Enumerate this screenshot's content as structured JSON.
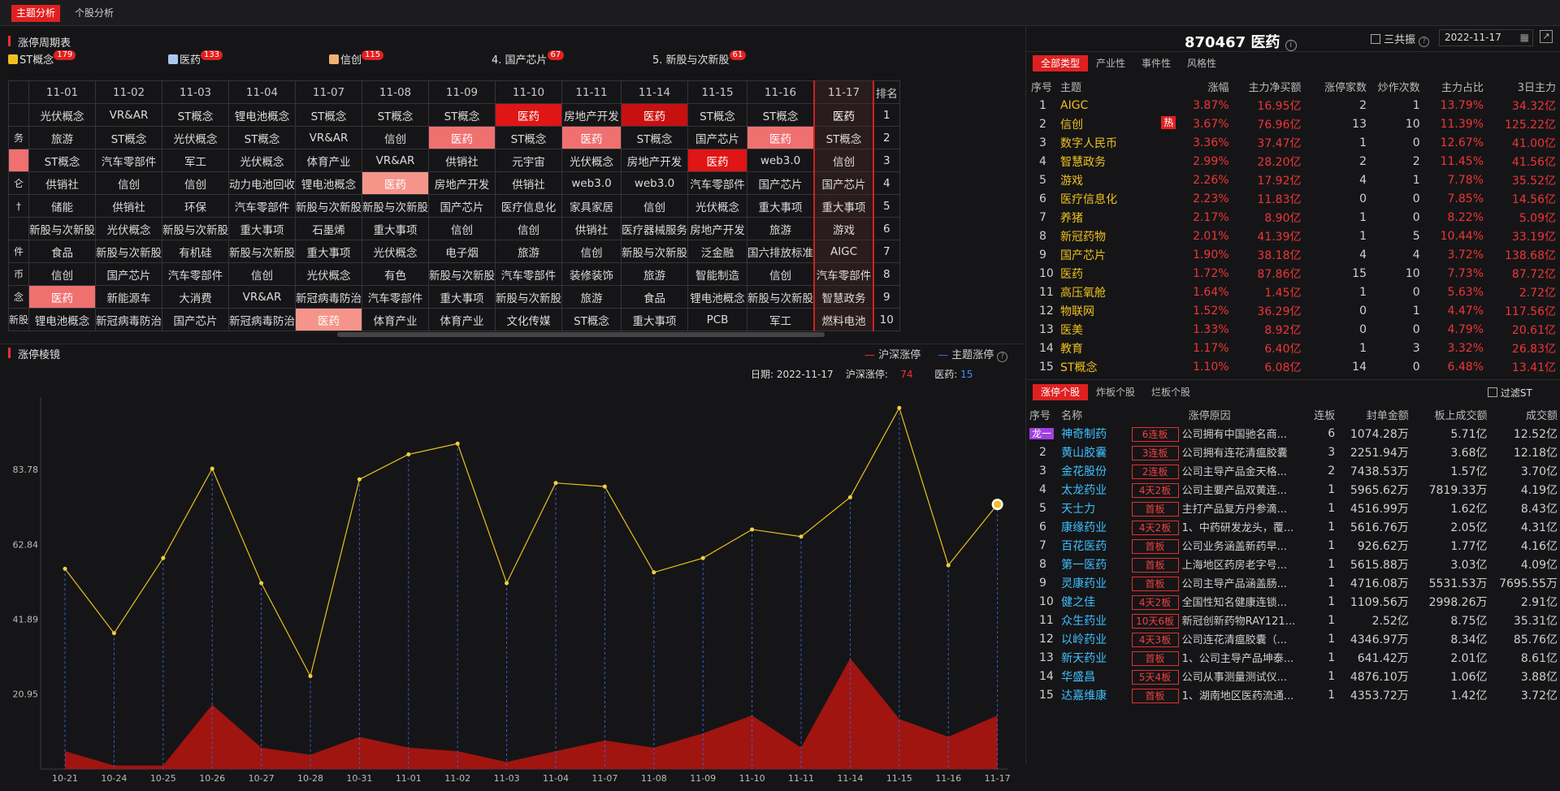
{
  "tabs": {
    "theme": "主题分析",
    "stock": "个股分析"
  },
  "cycle": {
    "title": "涨停周期表",
    "legend": [
      {
        "label": "ST概念",
        "count": "179",
        "icon": "gold-cube-icon"
      },
      {
        "label": "医药",
        "count": "133",
        "icon": "blue-cube-icon"
      },
      {
        "label": "信创",
        "count": "115",
        "icon": "orange-cube-icon"
      },
      {
        "label": "4. 国产芯片",
        "count": "67",
        "icon": ""
      },
      {
        "label": "5. 新股与次新股",
        "count": "61",
        "icon": ""
      }
    ],
    "dates": [
      "11-01",
      "11-02",
      "11-03",
      "11-04",
      "11-07",
      "11-08",
      "11-09",
      "11-10",
      "11-11",
      "11-14",
      "11-15",
      "11-16",
      "11-17"
    ],
    "rank_label": "排名",
    "prev_col": [
      "",
      "务",
      "",
      "仑",
      "†",
      "",
      "件",
      "币",
      "念",
      "新股"
    ],
    "rows": [
      [
        "光伏概念",
        "VR&AR",
        "ST概念",
        "锂电池概念",
        "ST概念",
        "ST概念",
        "ST概念",
        "医药",
        "房地产开发",
        "医药",
        "ST概念",
        "ST概念",
        "医药"
      ],
      [
        "旅游",
        "ST概念",
        "光伏概念",
        "ST概念",
        "VR&AR",
        "信创",
        "医药",
        "ST概念",
        "医药",
        "ST概念",
        "国产芯片",
        "医药",
        "ST概念"
      ],
      [
        "ST概念",
        "汽车零部件",
        "军工",
        "光伏概念",
        "体育产业",
        "VR&AR",
        "供销社",
        "元宇宙",
        "光伏概念",
        "房地产开发",
        "医药",
        "web3.0",
        "信创"
      ],
      [
        "供销社",
        "信创",
        "信创",
        "动力电池回收",
        "锂电池概念",
        "医药",
        "房地产开发",
        "供销社",
        "web3.0",
        "web3.0",
        "汽车零部件",
        "国产芯片",
        "国产芯片"
      ],
      [
        "储能",
        "供销社",
        "环保",
        "汽车零部件",
        "新股与次新股",
        "新股与次新股",
        "国产芯片",
        "医疗信息化",
        "家具家居",
        "信创",
        "光伏概念",
        "重大事项",
        "重大事项"
      ],
      [
        "新股与次新股",
        "光伏概念",
        "新股与次新股",
        "重大事项",
        "石墨烯",
        "重大事项",
        "信创",
        "信创",
        "供销社",
        "医疗器械服务",
        "房地产开发",
        "旅游",
        "游戏"
      ],
      [
        "食品",
        "新股与次新股",
        "有机硅",
        "新股与次新股",
        "重大事项",
        "光伏概念",
        "电子烟",
        "旅游",
        "信创",
        "新股与次新股",
        "泛金融",
        "国六排放标准",
        "AIGC"
      ],
      [
        "信创",
        "国产芯片",
        "汽车零部件",
        "信创",
        "光伏概念",
        "有色",
        "新股与次新股",
        "汽车零部件",
        "装修装饰",
        "旅游",
        "智能制造",
        "信创",
        "汽车零部件"
      ],
      [
        "医药",
        "新能源车",
        "大消费",
        "VR&AR",
        "新冠病毒防治",
        "汽车零部件",
        "重大事项",
        "新股与次新股",
        "旅游",
        "食品",
        "锂电池概念",
        "新股与次新股",
        "智慧政务"
      ],
      [
        "锂电池概念",
        "新冠病毒防治",
        "国产芯片",
        "新冠病毒防治",
        "医药",
        "体育产业",
        "体育产业",
        "文化传媒",
        "ST概念",
        "重大事项",
        "PCB",
        "军工",
        "燃料电池"
      ]
    ]
  },
  "mirror": {
    "title": "涨停棱镜",
    "legend_hs": "沪深涨停",
    "legend_theme": "主题涨停",
    "info_date_label": "日期:",
    "info_date": "2022-11-17",
    "info_hs_label": "沪深涨停:",
    "info_hs": "74",
    "info_theme_label": "医药:",
    "info_theme": "15"
  },
  "chart_data": {
    "type": "line",
    "x": [
      "10-21",
      "10-24",
      "10-25",
      "10-26",
      "10-27",
      "10-28",
      "10-31",
      "11-01",
      "11-02",
      "11-03",
      "11-04",
      "11-07",
      "11-08",
      "11-09",
      "11-10",
      "11-11",
      "11-14",
      "11-15",
      "11-16",
      "11-17"
    ],
    "y_ticks": [
      "20.95",
      "41.89",
      "62.84",
      "83.78"
    ],
    "ylim": [
      0,
      104
    ],
    "series": [
      {
        "name": "沪深涨停",
        "type": "line",
        "color": "#e8c020",
        "values": [
          56,
          38,
          59,
          84,
          52,
          26,
          81,
          88,
          91,
          52,
          80,
          79,
          55,
          59,
          67,
          65,
          76,
          101,
          57,
          74
        ]
      },
      {
        "name": "主题涨停",
        "type": "area",
        "color": "#a01510",
        "values": [
          5,
          1,
          1,
          18,
          6,
          4,
          9,
          6,
          5,
          2,
          5,
          8,
          6,
          10,
          15,
          6,
          31,
          14,
          9,
          15
        ]
      }
    ]
  },
  "stock": {
    "code": "870467",
    "name": "医药",
    "sanggong": "三共振",
    "date": "2022-11-17"
  },
  "theme_tabs": [
    "全部类型",
    "产业性",
    "事件性",
    "风格性"
  ],
  "theme_table": {
    "headers": [
      "序号",
      "主题",
      "涨幅",
      "主力净买额",
      "涨停家数",
      "炒作次数",
      "主力占比",
      "3日主力"
    ],
    "rows": [
      [
        "1",
        "AIGC",
        "",
        "3.87%",
        "16.95亿",
        "2",
        "1",
        "13.79%",
        "34.32亿"
      ],
      [
        "2",
        "信创",
        "热",
        "3.67%",
        "76.96亿",
        "13",
        "10",
        "11.39%",
        "125.22亿"
      ],
      [
        "3",
        "数字人民币",
        "",
        "3.36%",
        "37.47亿",
        "1",
        "0",
        "12.67%",
        "41.00亿"
      ],
      [
        "4",
        "智慧政务",
        "",
        "2.99%",
        "28.20亿",
        "2",
        "2",
        "11.45%",
        "41.56亿"
      ],
      [
        "5",
        "游戏",
        "",
        "2.26%",
        "17.92亿",
        "4",
        "1",
        "7.78%",
        "35.52亿"
      ],
      [
        "6",
        "医疗信息化",
        "",
        "2.23%",
        "11.83亿",
        "0",
        "0",
        "7.85%",
        "14.56亿"
      ],
      [
        "7",
        "养猪",
        "",
        "2.17%",
        "8.90亿",
        "1",
        "0",
        "8.22%",
        "5.09亿"
      ],
      [
        "8",
        "新冠药物",
        "",
        "2.01%",
        "41.39亿",
        "1",
        "5",
        "10.44%",
        "33.19亿"
      ],
      [
        "9",
        "国产芯片",
        "",
        "1.90%",
        "38.18亿",
        "4",
        "4",
        "3.72%",
        "138.68亿"
      ],
      [
        "10",
        "医药",
        "",
        "1.72%",
        "87.86亿",
        "15",
        "10",
        "7.73%",
        "87.72亿"
      ],
      [
        "11",
        "高压氧舱",
        "",
        "1.64%",
        "1.45亿",
        "1",
        "0",
        "5.63%",
        "2.72亿"
      ],
      [
        "12",
        "物联网",
        "",
        "1.52%",
        "36.29亿",
        "0",
        "1",
        "4.47%",
        "117.56亿"
      ],
      [
        "13",
        "医美",
        "",
        "1.33%",
        "8.92亿",
        "0",
        "0",
        "4.79%",
        "20.61亿"
      ],
      [
        "14",
        "教育",
        "",
        "1.17%",
        "6.40亿",
        "1",
        "3",
        "3.32%",
        "26.83亿"
      ],
      [
        "15",
        "ST概念",
        "",
        "1.10%",
        "6.08亿",
        "14",
        "0",
        "6.48%",
        "13.41亿"
      ]
    ]
  },
  "stock_tabs": [
    "涨停个股",
    "炸板个股",
    "烂板个股"
  ],
  "filter_st": "过滤ST",
  "stock_table": {
    "headers": [
      "序号",
      "名称",
      "涨停原因",
      "连板",
      "封单金额",
      "板上成交额",
      "成交额"
    ],
    "rows": [
      [
        "龙一",
        "神奇制药",
        "6连板",
        "公司拥有中国驰名商...",
        "6",
        "1074.28万",
        "5.71亿",
        "12.52亿"
      ],
      [
        "2",
        "黄山胶囊",
        "3连板",
        "公司拥有连花清瘟胶囊",
        "3",
        "2251.94万",
        "3.68亿",
        "12.18亿"
      ],
      [
        "3",
        "金花股份",
        "2连板",
        "公司主导产品金天格...",
        "2",
        "7438.53万",
        "1.57亿",
        "3.70亿"
      ],
      [
        "4",
        "太龙药业",
        "4天2板",
        "公司主要产品双黄连...",
        "1",
        "5965.62万",
        "7819.33万",
        "4.19亿"
      ],
      [
        "5",
        "天士力",
        "首板",
        "主打产品复方丹参滴...",
        "1",
        "4516.99万",
        "1.62亿",
        "8.43亿"
      ],
      [
        "6",
        "康缘药业",
        "4天2板",
        "1、中药研发龙头，覆...",
        "1",
        "5616.76万",
        "2.05亿",
        "4.31亿"
      ],
      [
        "7",
        "百花医药",
        "首板",
        "公司业务涵盖新药早...",
        "1",
        "926.62万",
        "1.77亿",
        "4.16亿"
      ],
      [
        "8",
        "第一医药",
        "首板",
        "上海地区药房老字号...",
        "1",
        "5615.88万",
        "3.03亿",
        "4.09亿"
      ],
      [
        "9",
        "灵康药业",
        "首板",
        "公司主导产品涵盖肠...",
        "1",
        "4716.08万",
        "5531.53万",
        "7695.55万"
      ],
      [
        "10",
        "健之佳",
        "4天2板",
        "全国性知名健康连锁...",
        "1",
        "1109.56万",
        "2998.26万",
        "2.91亿"
      ],
      [
        "11",
        "众生药业",
        "10天6板",
        "新冠创新药物RAY121...",
        "1",
        "2.52亿",
        "8.75亿",
        "35.31亿"
      ],
      [
        "12",
        "以岭药业",
        "4天3板",
        "公司连花清瘟胶囊（...",
        "1",
        "4346.97万",
        "8.34亿",
        "85.76亿"
      ],
      [
        "13",
        "新天药业",
        "首板",
        "1、公司主导产品坤泰...",
        "1",
        "641.42万",
        "2.01亿",
        "8.61亿"
      ],
      [
        "14",
        "华盛昌",
        "5天4板",
        "公司从事测量测试仪...",
        "1",
        "4876.10万",
        "1.06亿",
        "3.88亿"
      ],
      [
        "15",
        "达嘉维康",
        "首板",
        "1、湖南地区医药流通...",
        "1",
        "4353.72万",
        "1.42亿",
        "3.72亿"
      ]
    ]
  }
}
